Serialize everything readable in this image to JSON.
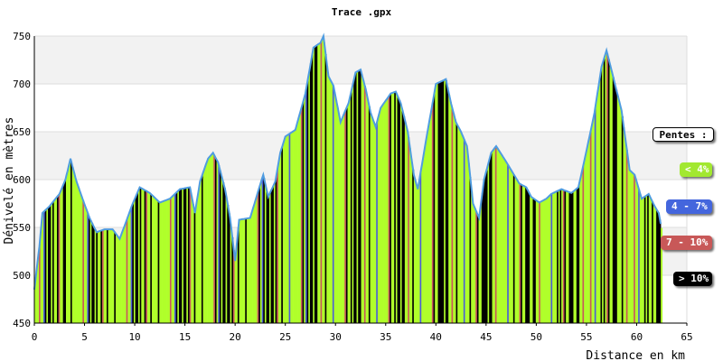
{
  "chart_data": {
    "type": "area",
    "title": "Trace .gpx",
    "xlabel": "Distance en km",
    "ylabel": "Dénivelé en mètres",
    "xlim": [
      0,
      65
    ],
    "ylim": [
      450,
      750
    ],
    "x_ticks": [
      0,
      5,
      10,
      15,
      20,
      25,
      30,
      35,
      40,
      45,
      50,
      55,
      60,
      65
    ],
    "y_ticks": [
      450,
      500,
      550,
      600,
      650,
      700,
      750
    ],
    "grid": true,
    "series": [
      {
        "values": [
          [
            0,
            485
          ],
          [
            0.5,
            530
          ],
          [
            0.8,
            565
          ],
          [
            1.5,
            572
          ],
          [
            2.5,
            585
          ],
          [
            3.1,
            600
          ],
          [
            3.6,
            622
          ],
          [
            4.2,
            598
          ],
          [
            4.8,
            580
          ],
          [
            5.5,
            560
          ],
          [
            6.2,
            545
          ],
          [
            7,
            548
          ],
          [
            7.8,
            548
          ],
          [
            8.5,
            538
          ],
          [
            9,
            552
          ],
          [
            9.8,
            575
          ],
          [
            10.5,
            592
          ],
          [
            11.5,
            586
          ],
          [
            12.5,
            576
          ],
          [
            13.5,
            580
          ],
          [
            14.5,
            590
          ],
          [
            15.5,
            592
          ],
          [
            16,
            565
          ],
          [
            16.5,
            598
          ],
          [
            17.3,
            622
          ],
          [
            17.8,
            628
          ],
          [
            18.3,
            618
          ],
          [
            19,
            590
          ],
          [
            19.5,
            560
          ],
          [
            20,
            515
          ],
          [
            20.4,
            558
          ],
          [
            21.5,
            560
          ],
          [
            22.3,
            588
          ],
          [
            22.8,
            605
          ],
          [
            23.3,
            582
          ],
          [
            24,
            598
          ],
          [
            24.5,
            628
          ],
          [
            25,
            645
          ],
          [
            26,
            652
          ],
          [
            27,
            690
          ],
          [
            27.8,
            738
          ],
          [
            28.5,
            743
          ],
          [
            28.8,
            750
          ],
          [
            29.3,
            708
          ],
          [
            29.8,
            698
          ],
          [
            30.5,
            660
          ],
          [
            31.3,
            680
          ],
          [
            32,
            712
          ],
          [
            32.5,
            715
          ],
          [
            33,
            695
          ],
          [
            33.5,
            670
          ],
          [
            34,
            655
          ],
          [
            34.5,
            675
          ],
          [
            35.5,
            690
          ],
          [
            36,
            692
          ],
          [
            36.5,
            680
          ],
          [
            37.2,
            650
          ],
          [
            37.8,
            605
          ],
          [
            38.2,
            590
          ],
          [
            39,
            640
          ],
          [
            40,
            700
          ],
          [
            41,
            705
          ],
          [
            41.5,
            680
          ],
          [
            42,
            660
          ],
          [
            42.5,
            650
          ],
          [
            43.1,
            635
          ],
          [
            43.7,
            575
          ],
          [
            44.3,
            560
          ],
          [
            44.8,
            600
          ],
          [
            45.5,
            628
          ],
          [
            46,
            635
          ],
          [
            46.8,
            622
          ],
          [
            47.5,
            610
          ],
          [
            48.3,
            596
          ],
          [
            49,
            592
          ],
          [
            49.5,
            582
          ],
          [
            50.3,
            576
          ],
          [
            51,
            580
          ],
          [
            51.5,
            585
          ],
          [
            52.5,
            590
          ],
          [
            53.5,
            586
          ],
          [
            54.2,
            592
          ],
          [
            55,
            630
          ],
          [
            55.8,
            670
          ],
          [
            56.5,
            718
          ],
          [
            57,
            735
          ],
          [
            57.6,
            710
          ],
          [
            58.5,
            672
          ],
          [
            59.3,
            610
          ],
          [
            59.8,
            605
          ],
          [
            60.5,
            580
          ],
          [
            61.2,
            585
          ],
          [
            61.8,
            572
          ],
          [
            62.2,
            565
          ],
          [
            62.5,
            548
          ]
        ]
      }
    ],
    "colors": {
      "plot_band": "#f2f2f2",
      "profile_line": "#4f9ce0",
      "green": "#b0ff2a",
      "blue": "#4b5fd6",
      "red": "#c85a5a",
      "black": "#000000"
    },
    "stripe_classes": "green,green,green,black,green,green,black,green,black,green,green,red,green,black,green,green,black,blue,green,green,black,green,red,green,green,black,green"
  },
  "legend": {
    "title": "Pentes :",
    "items": [
      {
        "label": "< 4%",
        "color": "#a2e830"
      },
      {
        "label": "4 - 7%",
        "color": "#4466dd"
      },
      {
        "label": "7 - 10%",
        "color": "#c85858"
      },
      {
        "label": "> 10%",
        "color": "#000000"
      }
    ]
  }
}
